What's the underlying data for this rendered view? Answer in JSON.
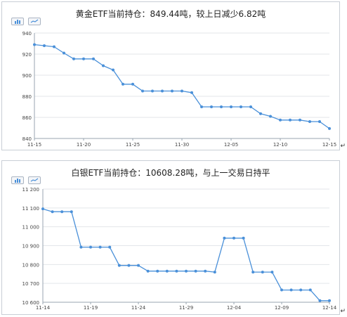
{
  "icons": {
    "bar_toggle": "bar-chart-icon",
    "line_toggle": "line-chart-icon",
    "paragraph_mark": "↵"
  },
  "colors": {
    "line": "#4a90d9",
    "grid": "#e3e6ea",
    "axis": "#9aa5b1",
    "tick_text": "#444444"
  },
  "chart_data": [
    {
      "type": "line",
      "title": "黄金ETF当前持仓：849.44吨，较上日减少6.82吨",
      "xlabel": "",
      "ylabel": "",
      "ylim": [
        840,
        940
      ],
      "yticks": [
        940,
        920,
        900,
        880,
        860,
        840
      ],
      "ytick_labels": [
        "940",
        "920",
        "900",
        "880",
        "860",
        "840"
      ],
      "xticks": [
        0,
        5,
        10,
        15,
        20,
        25,
        30
      ],
      "xtick_labels": [
        "11-15",
        "11-20",
        "11-25",
        "11-30",
        "12-05",
        "12-10",
        "12-15"
      ],
      "grid": true,
      "x": [
        0,
        1,
        2,
        3,
        4,
        5,
        6,
        7,
        8,
        9,
        10,
        11,
        12,
        13,
        14,
        15,
        16,
        17,
        18,
        19,
        20,
        21,
        22,
        23,
        24,
        25,
        26,
        27,
        28,
        29,
        30
      ],
      "values": [
        929,
        928,
        927,
        921,
        915.5,
        915.5,
        915.5,
        909,
        905,
        891.5,
        891.5,
        885,
        885,
        885,
        885,
        885,
        883.5,
        870,
        870,
        870,
        870,
        870,
        870,
        863.5,
        861,
        857.5,
        857.5,
        857.5,
        856,
        856,
        849.4
      ]
    },
    {
      "type": "line",
      "title": "白银ETF当前持仓：10608.28吨，与上一交易日持平",
      "xlabel": "",
      "ylabel": "",
      "ylim": [
        10600,
        11200
      ],
      "yticks": [
        11200,
        11100,
        11000,
        10900,
        10800,
        10700,
        10600
      ],
      "ytick_labels": [
        "11 200",
        "11 100",
        "11 000",
        "10 900",
        "10 800",
        "10 700",
        "10 600"
      ],
      "xticks": [
        0,
        5,
        10,
        15,
        20,
        25,
        30
      ],
      "xtick_labels": [
        "11-14",
        "11-19",
        "11-24",
        "11-29",
        "12-04",
        "12-09",
        "12-14"
      ],
      "grid": true,
      "x": [
        0,
        1,
        2,
        3,
        4,
        5,
        6,
        7,
        8,
        9,
        10,
        11,
        12,
        13,
        14,
        15,
        16,
        17,
        18,
        19,
        20,
        21,
        22,
        23,
        24,
        25,
        26,
        27,
        28,
        29,
        30
      ],
      "values": [
        11095,
        11080,
        11080,
        11080,
        10892,
        10892,
        10892,
        10892,
        10795,
        10795,
        10795,
        10765,
        10765,
        10765,
        10765,
        10765,
        10765,
        10765,
        10760,
        10940,
        10940,
        10940,
        10760,
        10760,
        10760,
        10665,
        10665,
        10665,
        10665,
        10608.3,
        10608.3
      ]
    }
  ]
}
